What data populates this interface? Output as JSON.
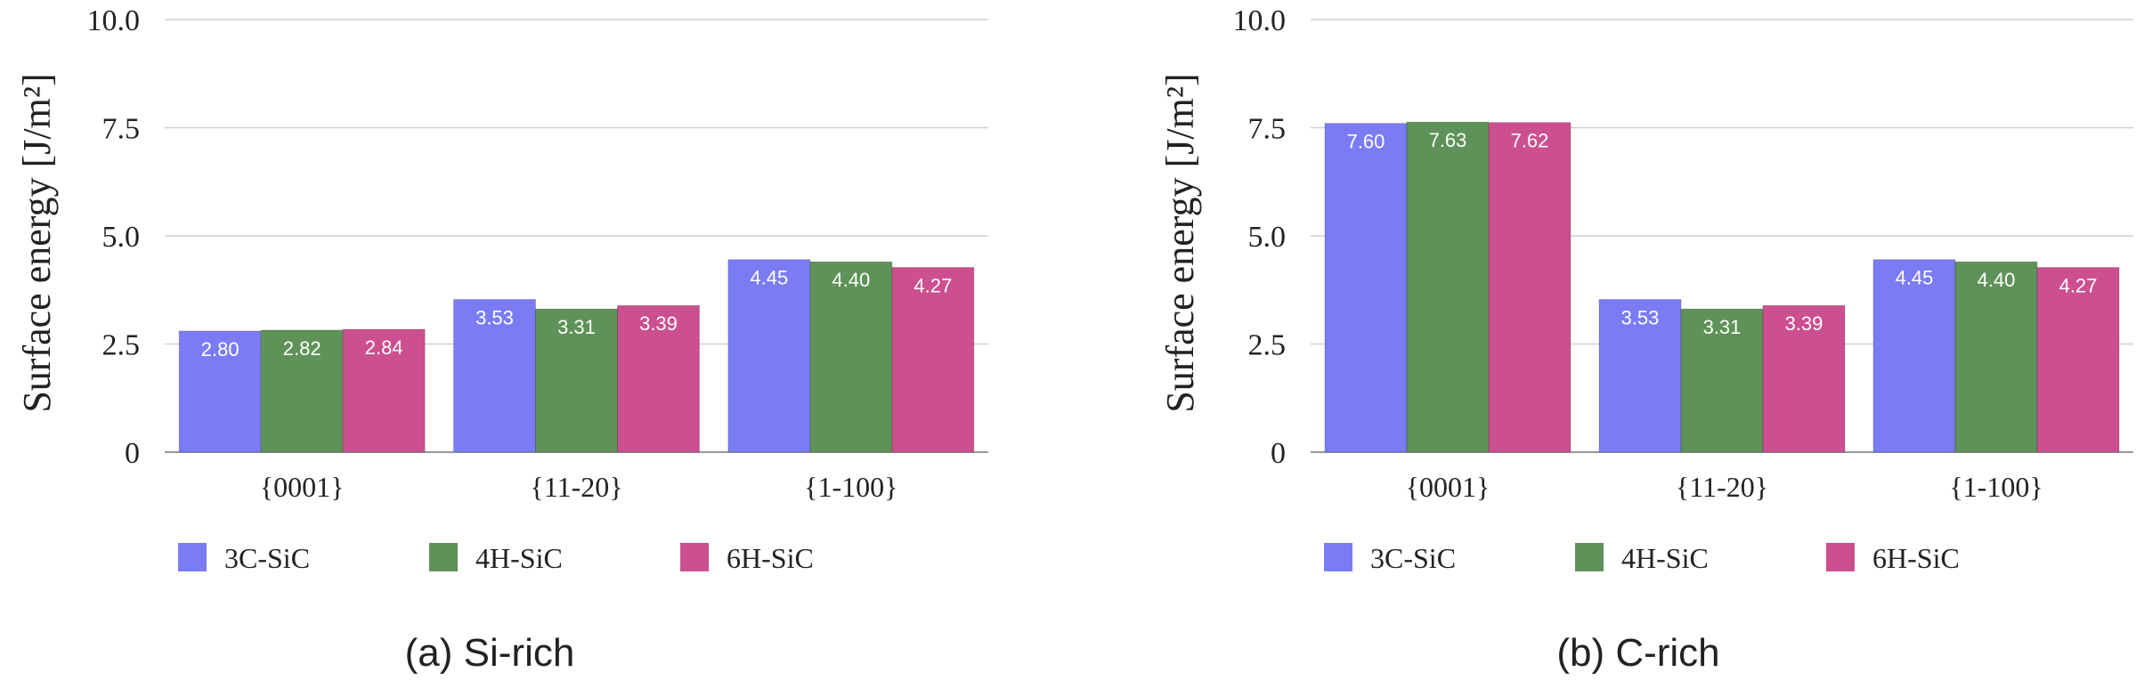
{
  "chart_data": [
    {
      "type": "bar",
      "caption": "(a) Si-rich",
      "ylabel": "Surface energy [J/m²]",
      "ylim": [
        0,
        10
      ],
      "yticks": [
        "0",
        "2.5",
        "5.0",
        "7.5",
        "10.0"
      ],
      "yticks_values": [
        0,
        2.5,
        5.0,
        7.5,
        10.0
      ],
      "categories": [
        "{0001}",
        "{11-20}",
        "{1-100}"
      ],
      "series": [
        {
          "name": "3C-SiC",
          "color": "#7b7cf4",
          "values": [
            2.8,
            3.53,
            4.45
          ],
          "labels": [
            "2.80",
            "3.53",
            "4.45"
          ]
        },
        {
          "name": "4H-SiC",
          "color": "#5f9258",
          "values": [
            2.82,
            3.31,
            4.4
          ],
          "labels": [
            "2.82",
            "3.31",
            "4.40"
          ]
        },
        {
          "name": "6H-SiC",
          "color": "#cc4f8f",
          "values": [
            2.84,
            3.39,
            4.27
          ],
          "labels": [
            "2.84",
            "3.39",
            "4.27"
          ]
        }
      ],
      "legend_position": "bottom",
      "grid": true
    },
    {
      "type": "bar",
      "caption": "(b) C-rich",
      "ylabel": "Surface energy [J/m²]",
      "ylim": [
        0,
        10
      ],
      "yticks": [
        "0",
        "2.5",
        "5.0",
        "7.5",
        "10.0"
      ],
      "yticks_values": [
        0,
        2.5,
        5.0,
        7.5,
        10.0
      ],
      "categories": [
        "{0001}",
        "{11-20}",
        "{1-100}"
      ],
      "series": [
        {
          "name": "3C-SiC",
          "color": "#7b7cf4",
          "values": [
            7.6,
            3.53,
            4.45
          ],
          "labels": [
            "7.60",
            "3.53",
            "4.45"
          ]
        },
        {
          "name": "4H-SiC",
          "color": "#5f9258",
          "values": [
            7.63,
            3.31,
            4.4
          ],
          "labels": [
            "7.63",
            "3.31",
            "4.40"
          ]
        },
        {
          "name": "6H-SiC",
          "color": "#cc4f8f",
          "values": [
            7.62,
            3.39,
            4.27
          ],
          "labels": [
            "7.62",
            "3.39",
            "4.27"
          ]
        }
      ],
      "legend_position": "bottom",
      "grid": true
    }
  ]
}
